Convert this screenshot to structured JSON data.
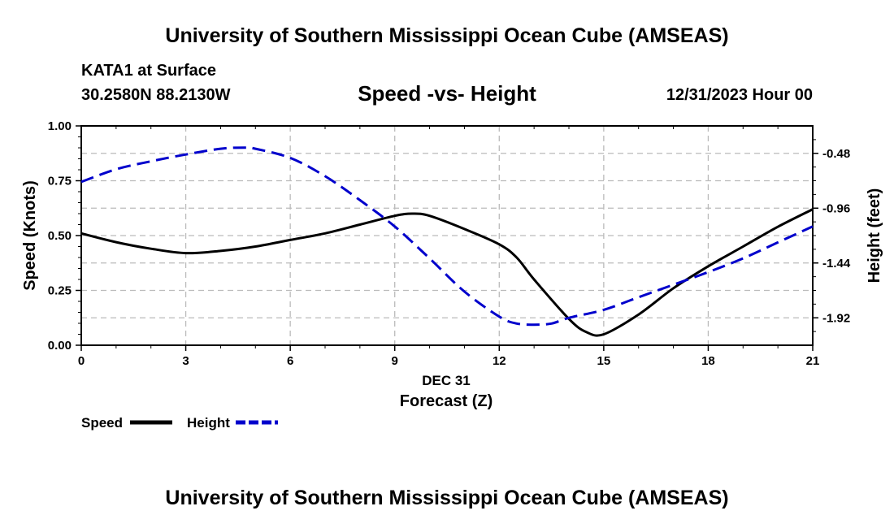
{
  "header": {
    "title": "University of Southern Mississippi Ocean Cube (AMSEAS)",
    "station": "KATA1 at Surface",
    "coords": "30.2580N  88.2130W",
    "subtitle": "Speed -vs- Height",
    "datetime": "12/31/2023 Hour 00"
  },
  "footer": {
    "title": "University of Southern Mississippi Ocean Cube (AMSEAS)"
  },
  "chart_data": {
    "type": "line",
    "title": "Speed -vs- Height",
    "xlabel_date": "DEC 31",
    "xlabel": "Forecast (Z)",
    "ylabel_left": "Speed (Knots)",
    "ylabel_right": "Height (feet)",
    "xlim": [
      0,
      21
    ],
    "ylim_left": [
      0,
      1.0
    ],
    "ylim_right": [
      -2.16,
      -0.24
    ],
    "x_ticks": [
      "0",
      "3",
      "6",
      "9",
      "12",
      "15",
      "18",
      "21"
    ],
    "x_tick_values": [
      0,
      3,
      6,
      9,
      12,
      15,
      18,
      21
    ],
    "y_ticks_left": [
      "0.00",
      "0.25",
      "0.50",
      "0.75",
      "1.00"
    ],
    "y_tick_values_left": [
      0,
      0.25,
      0.5,
      0.75,
      1.0
    ],
    "y_ticks_right": [
      "-0.48",
      "-0.96",
      "-1.44",
      "-1.92"
    ],
    "y_tick_values_right": [
      -0.48,
      -0.96,
      -1.44,
      -1.92
    ],
    "grid": true,
    "legend_position": "bottom-left",
    "series": [
      {
        "name": "Speed",
        "axis": "left",
        "color": "#000000",
        "dash": "solid",
        "x": [
          0,
          1,
          2,
          3,
          4,
          5,
          6,
          7,
          8,
          9,
          9.5,
          10,
          11,
          12,
          12.5,
          13,
          14,
          14.5,
          15,
          16,
          17,
          18,
          19,
          20,
          21
        ],
        "values": [
          0.51,
          0.47,
          0.44,
          0.42,
          0.43,
          0.45,
          0.48,
          0.51,
          0.55,
          0.59,
          0.6,
          0.59,
          0.53,
          0.46,
          0.4,
          0.3,
          0.12,
          0.06,
          0.05,
          0.14,
          0.26,
          0.36,
          0.45,
          0.54,
          0.62
        ]
      },
      {
        "name": "Height",
        "axis": "right",
        "color": "#0000cc",
        "dash": "dashed",
        "x": [
          0,
          1,
          2,
          3,
          4,
          4.7,
          5,
          6,
          7,
          8,
          9,
          10,
          11,
          12,
          12.5,
          13,
          13.5,
          14,
          15,
          16,
          17,
          18,
          19,
          20,
          21
        ],
        "values": [
          -0.73,
          -0.62,
          -0.55,
          -0.49,
          -0.44,
          -0.43,
          -0.44,
          -0.52,
          -0.68,
          -0.89,
          -1.12,
          -1.4,
          -1.69,
          -1.91,
          -1.97,
          -1.98,
          -1.97,
          -1.92,
          -1.85,
          -1.74,
          -1.63,
          -1.52,
          -1.4,
          -1.26,
          -1.12
        ]
      }
    ]
  }
}
